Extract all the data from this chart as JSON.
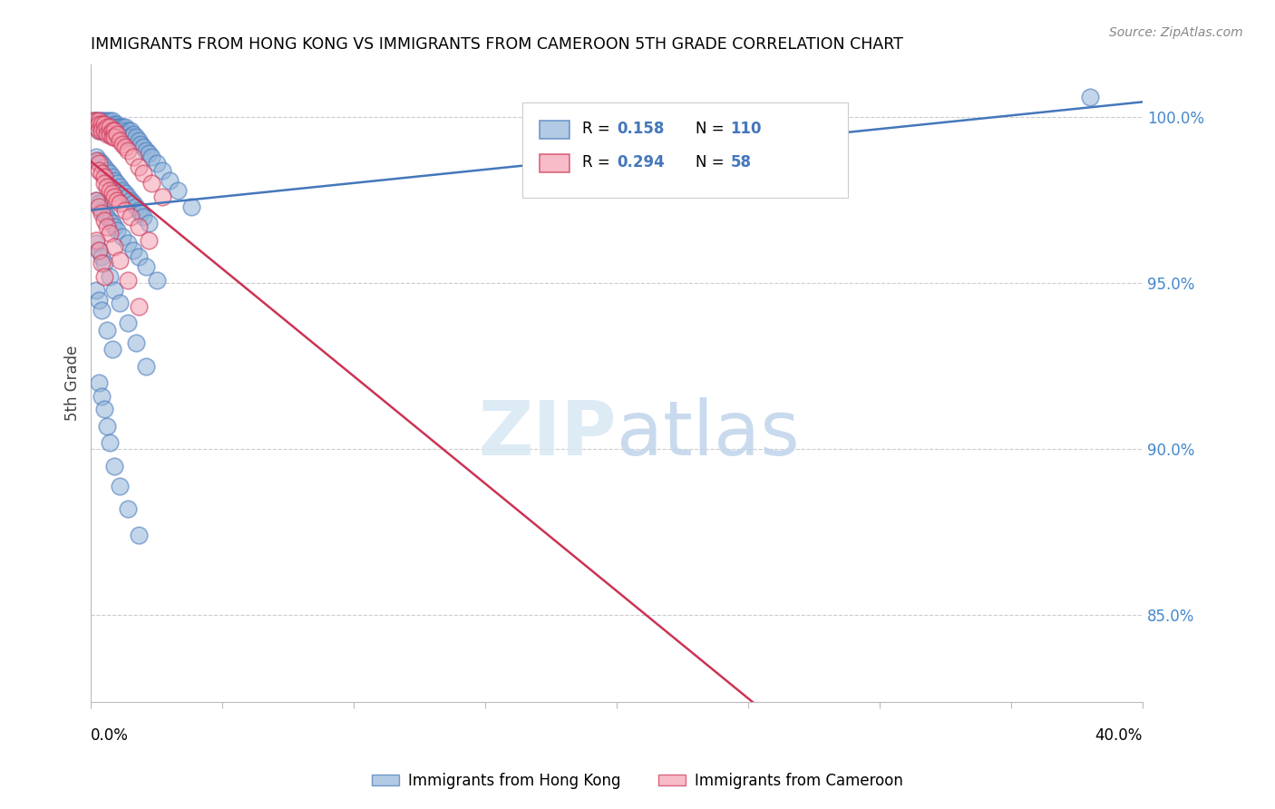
{
  "title": "IMMIGRANTS FROM HONG KONG VS IMMIGRANTS FROM CAMEROON 5TH GRADE CORRELATION CHART",
  "source": "Source: ZipAtlas.com",
  "ylabel": "5th Grade",
  "ylabel_ticks": [
    "100.0%",
    "95.0%",
    "90.0%",
    "85.0%"
  ],
  "ylabel_values": [
    1.0,
    0.95,
    0.9,
    0.85
  ],
  "xmin": 0.0,
  "xmax": 0.4,
  "ymin": 0.824,
  "ymax": 1.016,
  "color_hk": "#92B4D8",
  "color_cam": "#F4A0B0",
  "trendline_color_hk": "#4477BB",
  "trendline_color_cam": "#CC3355",
  "hk_x": [
    0.001,
    0.002,
    0.002,
    0.003,
    0.003,
    0.003,
    0.004,
    0.004,
    0.004,
    0.005,
    0.005,
    0.005,
    0.006,
    0.006,
    0.006,
    0.007,
    0.007,
    0.007,
    0.008,
    0.008,
    0.008,
    0.009,
    0.009,
    0.009,
    0.01,
    0.01,
    0.01,
    0.011,
    0.011,
    0.012,
    0.012,
    0.013,
    0.013,
    0.014,
    0.014,
    0.015,
    0.015,
    0.016,
    0.017,
    0.018,
    0.019,
    0.02,
    0.021,
    0.022,
    0.023,
    0.025,
    0.027,
    0.03,
    0.033,
    0.038,
    0.002,
    0.003,
    0.004,
    0.005,
    0.006,
    0.007,
    0.008,
    0.009,
    0.01,
    0.011,
    0.012,
    0.013,
    0.014,
    0.015,
    0.016,
    0.017,
    0.018,
    0.019,
    0.02,
    0.022,
    0.002,
    0.003,
    0.004,
    0.005,
    0.006,
    0.007,
    0.008,
    0.009,
    0.01,
    0.012,
    0.014,
    0.016,
    0.018,
    0.021,
    0.025,
    0.002,
    0.003,
    0.004,
    0.005,
    0.007,
    0.009,
    0.011,
    0.014,
    0.017,
    0.021,
    0.002,
    0.003,
    0.004,
    0.006,
    0.008,
    0.003,
    0.004,
    0.005,
    0.006,
    0.007,
    0.009,
    0.011,
    0.014,
    0.018,
    0.38
  ],
  "hk_y": [
    0.999,
    0.999,
    0.997,
    0.999,
    0.998,
    0.996,
    0.999,
    0.997,
    0.996,
    0.999,
    0.998,
    0.996,
    0.999,
    0.998,
    0.996,
    0.999,
    0.997,
    0.995,
    0.999,
    0.997,
    0.996,
    0.998,
    0.997,
    0.995,
    0.998,
    0.997,
    0.995,
    0.997,
    0.996,
    0.997,
    0.996,
    0.997,
    0.995,
    0.996,
    0.994,
    0.996,
    0.994,
    0.995,
    0.994,
    0.993,
    0.992,
    0.991,
    0.99,
    0.989,
    0.988,
    0.986,
    0.984,
    0.981,
    0.978,
    0.973,
    0.988,
    0.987,
    0.986,
    0.985,
    0.984,
    0.983,
    0.982,
    0.981,
    0.98,
    0.979,
    0.978,
    0.977,
    0.976,
    0.975,
    0.974,
    0.973,
    0.972,
    0.971,
    0.97,
    0.968,
    0.975,
    0.974,
    0.972,
    0.971,
    0.97,
    0.969,
    0.968,
    0.967,
    0.966,
    0.964,
    0.962,
    0.96,
    0.958,
    0.955,
    0.951,
    0.962,
    0.96,
    0.958,
    0.956,
    0.952,
    0.948,
    0.944,
    0.938,
    0.932,
    0.925,
    0.948,
    0.945,
    0.942,
    0.936,
    0.93,
    0.92,
    0.916,
    0.912,
    0.907,
    0.902,
    0.895,
    0.889,
    0.882,
    0.874,
    1.006
  ],
  "cam_x": [
    0.001,
    0.002,
    0.002,
    0.003,
    0.003,
    0.003,
    0.004,
    0.004,
    0.005,
    0.005,
    0.006,
    0.006,
    0.007,
    0.007,
    0.008,
    0.008,
    0.009,
    0.009,
    0.01,
    0.011,
    0.012,
    0.013,
    0.014,
    0.016,
    0.018,
    0.02,
    0.023,
    0.027,
    0.002,
    0.003,
    0.003,
    0.004,
    0.005,
    0.005,
    0.006,
    0.007,
    0.008,
    0.009,
    0.01,
    0.011,
    0.013,
    0.015,
    0.018,
    0.022,
    0.002,
    0.003,
    0.004,
    0.005,
    0.006,
    0.007,
    0.009,
    0.011,
    0.014,
    0.018,
    0.002,
    0.003,
    0.004,
    0.005
  ],
  "cam_y": [
    0.999,
    0.999,
    0.997,
    0.999,
    0.998,
    0.996,
    0.998,
    0.996,
    0.998,
    0.996,
    0.997,
    0.995,
    0.997,
    0.995,
    0.996,
    0.994,
    0.996,
    0.994,
    0.995,
    0.993,
    0.992,
    0.991,
    0.99,
    0.988,
    0.985,
    0.983,
    0.98,
    0.976,
    0.987,
    0.986,
    0.984,
    0.983,
    0.982,
    0.98,
    0.979,
    0.978,
    0.977,
    0.976,
    0.975,
    0.974,
    0.972,
    0.97,
    0.967,
    0.963,
    0.975,
    0.973,
    0.971,
    0.969,
    0.967,
    0.965,
    0.961,
    0.957,
    0.951,
    0.943,
    0.963,
    0.96,
    0.956,
    0.952
  ]
}
